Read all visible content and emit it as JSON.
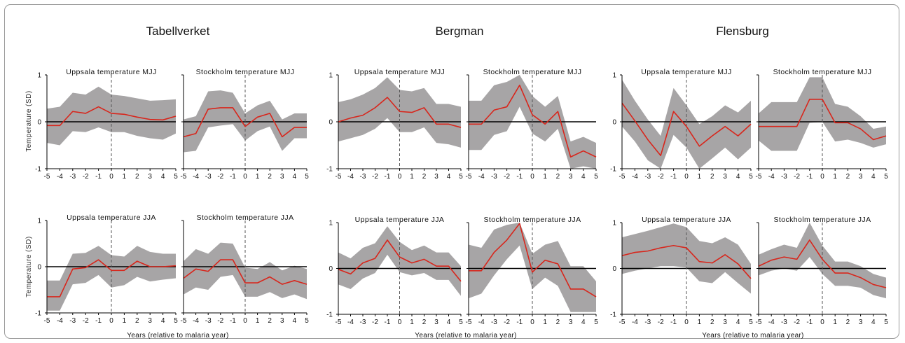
{
  "figure": {
    "groups": [
      "Tabellverket",
      "Bergman",
      "Flensburg"
    ],
    "ylabel": "Temperature (SD)",
    "xlabel": "Years (relative to malaria year)"
  },
  "colors": {
    "band": "#a7a5a6",
    "line": "#d8261c",
    "zero": "#000000",
    "event": "#555555"
  },
  "chart_data": [
    {
      "type": "area",
      "group": "Tabellverket",
      "title": "Uppsala temperature MJJ",
      "ylim": [
        -1,
        1
      ],
      "x": [
        -5,
        -4,
        -3,
        -2,
        -1,
        0,
        1,
        2,
        3,
        4,
        5
      ],
      "mean": [
        -0.08,
        -0.08,
        0.22,
        0.18,
        0.32,
        0.18,
        0.16,
        0.1,
        0.05,
        0.04,
        0.12
      ],
      "upper": [
        0.28,
        0.32,
        0.62,
        0.58,
        0.75,
        0.58,
        0.55,
        0.5,
        0.45,
        0.46,
        0.48
      ],
      "lower": [
        -0.45,
        -0.5,
        -0.2,
        -0.22,
        -0.12,
        -0.22,
        -0.22,
        -0.3,
        -0.35,
        -0.38,
        -0.25
      ]
    },
    {
      "type": "area",
      "group": "Tabellverket",
      "title": "Stockholm temperature MJJ",
      "ylim": [
        -1,
        1
      ],
      "x": [
        -5,
        -4,
        -3,
        -2,
        -1,
        0,
        1,
        2,
        3,
        4,
        5
      ],
      "mean": [
        -0.32,
        -0.25,
        0.27,
        0.3,
        0.3,
        -0.1,
        0.1,
        0.18,
        -0.32,
        -0.12,
        -0.12
      ],
      "upper": [
        0.05,
        0.12,
        0.65,
        0.67,
        0.62,
        0.18,
        0.35,
        0.45,
        0.05,
        0.18,
        0.18
      ],
      "lower": [
        -0.65,
        -0.62,
        -0.12,
        -0.08,
        -0.05,
        -0.4,
        -0.2,
        -0.1,
        -0.62,
        -0.35,
        -0.35
      ]
    },
    {
      "type": "area",
      "group": "Bergman",
      "title": "Uppsala temperature MJJ",
      "ylim": [
        -1,
        1
      ],
      "x": [
        -5,
        -4,
        -3,
        -2,
        -1,
        0,
        1,
        2,
        3,
        4,
        5
      ],
      "mean": [
        0.0,
        0.08,
        0.14,
        0.3,
        0.52,
        0.22,
        0.2,
        0.3,
        -0.05,
        -0.05,
        -0.12
      ],
      "upper": [
        0.42,
        0.48,
        0.58,
        0.72,
        0.95,
        0.68,
        0.65,
        0.72,
        0.38,
        0.38,
        0.32
      ],
      "lower": [
        -0.42,
        -0.35,
        -0.28,
        -0.15,
        0.08,
        -0.22,
        -0.22,
        -0.12,
        -0.45,
        -0.48,
        -0.55
      ]
    },
    {
      "type": "area",
      "group": "Bergman",
      "title": "Stockholm temperature MJJ",
      "ylim": [
        -1,
        1
      ],
      "x": [
        -5,
        -4,
        -3,
        -2,
        -1,
        0,
        1,
        2,
        3,
        4,
        5
      ],
      "mean": [
        -0.05,
        -0.05,
        0.25,
        0.32,
        0.78,
        0.15,
        -0.05,
        0.22,
        -0.75,
        -0.62,
        -0.75
      ],
      "upper": [
        0.45,
        0.45,
        0.78,
        0.85,
        1.0,
        0.55,
        0.32,
        0.55,
        -0.42,
        -0.32,
        -0.45
      ],
      "lower": [
        -0.6,
        -0.6,
        -0.28,
        -0.2,
        0.32,
        -0.25,
        -0.42,
        -0.15,
        -1.0,
        -0.95,
        -1.0
      ]
    },
    {
      "type": "area",
      "group": "Flensburg",
      "title": "Uppsala temperature MJJ",
      "ylim": [
        -1,
        1
      ],
      "x": [
        -5,
        -4,
        -3,
        -2,
        -1,
        0,
        1,
        2,
        3,
        4,
        5
      ],
      "mean": [
        0.4,
        0.02,
        -0.38,
        -0.72,
        0.22,
        -0.1,
        -0.52,
        -0.3,
        -0.1,
        -0.3,
        -0.05
      ],
      "upper": [
        0.9,
        0.45,
        0.05,
        -0.3,
        0.72,
        0.35,
        -0.05,
        0.12,
        0.35,
        0.2,
        0.45
      ],
      "lower": [
        -0.1,
        -0.42,
        -0.82,
        -1.0,
        -0.28,
        -0.55,
        -1.0,
        -0.78,
        -0.55,
        -0.8,
        -0.55
      ]
    },
    {
      "type": "area",
      "group": "Flensburg",
      "title": "Stockholm temperature MJJ",
      "ylim": [
        -1,
        1
      ],
      "x": [
        -5,
        -4,
        -3,
        -2,
        -1,
        0,
        1,
        2,
        3,
        4,
        5
      ],
      "mean": [
        -0.1,
        -0.1,
        -0.1,
        -0.1,
        0.48,
        0.48,
        -0.02,
        -0.02,
        -0.15,
        -0.38,
        -0.3
      ],
      "upper": [
        0.18,
        0.42,
        0.42,
        0.42,
        0.95,
        0.95,
        0.38,
        0.32,
        0.12,
        -0.15,
        -0.1
      ],
      "lower": [
        -0.4,
        -0.62,
        -0.62,
        -0.62,
        -0.02,
        0.0,
        -0.42,
        -0.38,
        -0.45,
        -0.55,
        -0.48
      ]
    },
    {
      "type": "area",
      "group": "Tabellverket",
      "title": "Uppsala temperature JJA",
      "ylim": [
        -1,
        1
      ],
      "x": [
        -5,
        -4,
        -3,
        -2,
        -1,
        0,
        1,
        2,
        3,
        4,
        5
      ],
      "mean": [
        -0.65,
        -0.65,
        -0.05,
        -0.02,
        0.15,
        -0.08,
        -0.08,
        0.12,
        0.0,
        0.0,
        0.02
      ],
      "upper": [
        -0.3,
        -0.3,
        0.28,
        0.3,
        0.45,
        0.25,
        0.22,
        0.45,
        0.32,
        0.28,
        0.28
      ],
      "lower": [
        -0.95,
        -0.95,
        -0.38,
        -0.35,
        -0.18,
        -0.45,
        -0.4,
        -0.22,
        -0.32,
        -0.28,
        -0.25
      ]
    },
    {
      "type": "area",
      "group": "Tabellverket",
      "title": "Stockholm temperature JJA",
      "ylim": [
        -1,
        1
      ],
      "x": [
        -5,
        -4,
        -3,
        -2,
        -1,
        0,
        1,
        2,
        3,
        4,
        5
      ],
      "mean": [
        -0.25,
        -0.05,
        -0.1,
        0.15,
        0.15,
        -0.35,
        -0.35,
        -0.22,
        -0.38,
        -0.3,
        -0.38
      ],
      "upper": [
        0.12,
        0.38,
        0.28,
        0.52,
        0.5,
        -0.02,
        -0.05,
        0.1,
        -0.08,
        0.02,
        -0.05
      ],
      "lower": [
        -0.6,
        -0.45,
        -0.5,
        -0.22,
        -0.18,
        -0.65,
        -0.65,
        -0.55,
        -0.68,
        -0.6,
        -0.7
      ]
    },
    {
      "type": "area",
      "group": "Bergman",
      "title": "Uppsala temperature JJA",
      "ylim": [
        -1,
        1
      ],
      "x": [
        -5,
        -4,
        -3,
        -2,
        -1,
        0,
        1,
        2,
        3,
        4,
        5
      ],
      "mean": [
        -0.02,
        -0.12,
        0.12,
        0.22,
        0.62,
        0.25,
        0.12,
        0.2,
        0.05,
        0.05,
        -0.28
      ],
      "upper": [
        0.35,
        0.22,
        0.45,
        0.55,
        0.92,
        0.58,
        0.4,
        0.5,
        0.35,
        0.35,
        0.05
      ],
      "lower": [
        -0.35,
        -0.45,
        -0.22,
        -0.1,
        0.3,
        -0.08,
        -0.15,
        -0.1,
        -0.25,
        -0.25,
        -0.6
      ]
    },
    {
      "type": "area",
      "group": "Bergman",
      "title": "Stockholm temperature JJA",
      "ylim": [
        -1,
        1
      ],
      "x": [
        -5,
        -4,
        -3,
        -2,
        -1,
        0,
        1,
        2,
        3,
        4,
        5
      ],
      "mean": [
        -0.05,
        -0.05,
        0.35,
        0.62,
        0.98,
        -0.08,
        0.18,
        0.1,
        -0.45,
        -0.45,
        -0.62
      ],
      "upper": [
        0.52,
        0.45,
        0.85,
        0.95,
        1.0,
        0.32,
        0.52,
        0.6,
        0.05,
        0.05,
        -0.28
      ],
      "lower": [
        -0.65,
        -0.55,
        -0.15,
        0.2,
        0.5,
        -0.45,
        -0.2,
        -0.38,
        -0.95,
        -0.95,
        -0.95
      ]
    },
    {
      "type": "area",
      "group": "Flensburg",
      "title": "Uppsala temperature JJA",
      "ylim": [
        -1,
        1
      ],
      "x": [
        -5,
        -4,
        -3,
        -2,
        -1,
        0,
        1,
        2,
        3,
        4,
        5
      ],
      "mean": [
        0.28,
        0.35,
        0.38,
        0.45,
        0.5,
        0.45,
        0.15,
        0.12,
        0.3,
        0.1,
        -0.22
      ],
      "upper": [
        0.68,
        0.75,
        0.82,
        0.9,
        0.98,
        0.9,
        0.6,
        0.55,
        0.68,
        0.52,
        0.1
      ],
      "lower": [
        -0.12,
        -0.05,
        0.0,
        0.05,
        0.05,
        0.02,
        -0.28,
        -0.32,
        -0.08,
        -0.32,
        -0.55
      ]
    },
    {
      "type": "area",
      "group": "Flensburg",
      "title": "Stockholm temperature JJA",
      "ylim": [
        -1,
        1
      ],
      "x": [
        -5,
        -4,
        -3,
        -2,
        -1,
        0,
        1,
        2,
        3,
        4,
        5
      ],
      "mean": [
        0.05,
        0.18,
        0.25,
        0.2,
        0.62,
        0.2,
        -0.1,
        -0.1,
        -0.2,
        -0.35,
        -0.42
      ],
      "upper": [
        0.3,
        0.42,
        0.52,
        0.45,
        1.0,
        0.5,
        0.15,
        0.15,
        0.05,
        -0.12,
        -0.2
      ],
      "lower": [
        -0.15,
        -0.05,
        0.0,
        -0.05,
        0.25,
        -0.12,
        -0.38,
        -0.38,
        -0.42,
        -0.58,
        -0.65
      ]
    }
  ]
}
